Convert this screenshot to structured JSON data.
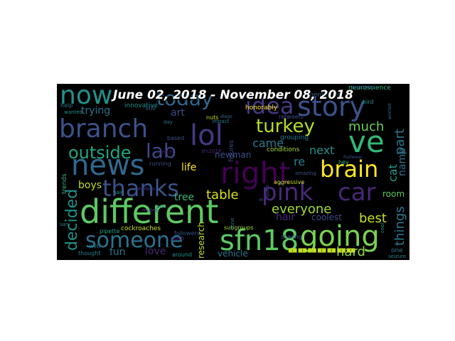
{
  "title": "June 02, 2018 - November 08, 2018",
  "words": [
    {
      "text": "different",
      "color": "#5ec962"
    },
    {
      "text": "lol",
      "color": "#443983"
    },
    {
      "text": "branch",
      "color": "#3b528b"
    },
    {
      "text": "now",
      "color": "#21918c"
    },
    {
      "text": "story",
      "color": "#3b528b"
    },
    {
      "text": "ve",
      "color": "#35b779"
    },
    {
      "text": "right",
      "color": "#440154"
    },
    {
      "text": "news",
      "color": "#31688e"
    },
    {
      "text": "going",
      "color": "#7ad151"
    },
    {
      "text": "sfn18",
      "color": "#5ec962"
    },
    {
      "text": "thanks",
      "color": "#3b528b"
    },
    {
      "text": "pink",
      "color": "#482878"
    },
    {
      "text": "car",
      "color": "#482878"
    },
    {
      "text": "brain",
      "color": "#fde725"
    },
    {
      "text": "someone",
      "color": "#2c728e"
    },
    {
      "text": "turkey",
      "color": "#b5de2b"
    },
    {
      "text": "lab",
      "color": "#3e4989"
    },
    {
      "text": "outside",
      "color": "#21a685"
    },
    {
      "text": "decided",
      "color": "#21918c"
    },
    {
      "text": "today",
      "color": "#31688e"
    },
    {
      "text": "idea",
      "color": "#443983"
    },
    {
      "text": "everyone",
      "color": "#a0da39"
    },
    {
      "text": "hard",
      "color": "#90d743"
    },
    {
      "text": "best",
      "color": "#c8e020"
    },
    {
      "text": "things",
      "color": "#2a788e"
    },
    {
      "text": "part",
      "color": "#2a788e"
    },
    {
      "text": "much",
      "color": "#6ccd5a"
    },
    {
      "text": "came",
      "color": "#2a788e"
    },
    {
      "text": "next",
      "color": "#21918c"
    },
    {
      "text": "table",
      "color": "#d8e219"
    },
    {
      "text": "boys",
      "color": "#bddf26"
    },
    {
      "text": "fun",
      "color": "#2a788e"
    },
    {
      "text": "love",
      "color": "#482878"
    },
    {
      "text": "trying",
      "color": "#2c728e"
    },
    {
      "text": "art",
      "color": "#3e4989"
    },
    {
      "text": "life",
      "color": "#fde725"
    },
    {
      "text": "tree",
      "color": "#35b779"
    },
    {
      "text": "newman",
      "color": "#3b528b"
    },
    {
      "text": "re",
      "color": "#26828e"
    },
    {
      "text": "cat",
      "color": "#1f9e89"
    },
    {
      "text": "name",
      "color": "#2c728e"
    },
    {
      "text": "room",
      "color": "#5ec962"
    },
    {
      "text": "hair",
      "color": "#482878"
    },
    {
      "text": "coolest",
      "color": "#3e4989"
    },
    {
      "text": "research",
      "color": "#c2df23"
    },
    {
      "text": "vehicle",
      "color": "#2a788e"
    },
    {
      "text": "cockroaches",
      "color": "#c8e020"
    },
    {
      "text": "conditions",
      "color": "#a0da39"
    },
    {
      "text": "mentioned",
      "color": "#31688e"
    },
    {
      "text": "honorably",
      "color": "#fde725"
    },
    {
      "text": "neuroscience",
      "color": "#35b779"
    },
    {
      "text": "innovative",
      "color": "#21918c"
    },
    {
      "text": "retweets",
      "color": "#3e4989"
    },
    {
      "text": "grouping",
      "color": "#2a788e"
    },
    {
      "text": "aggressive",
      "color": "#c2df23"
    },
    {
      "text": "subgroups",
      "color": "#a0da39"
    },
    {
      "text": "sharing",
      "color": "#3b528b"
    },
    {
      "text": "around",
      "color": "#21918c"
    },
    {
      "text": "well",
      "color": "#2a788e"
    },
    {
      "text": "thought",
      "color": "#26828e"
    },
    {
      "text": "followers",
      "color": "#3b528b"
    },
    {
      "text": "pipette",
      "color": "#1f9e89"
    },
    {
      "text": "trends",
      "color": "#35b779"
    },
    {
      "text": "still",
      "color": "#31688e"
    },
    {
      "text": "nuts",
      "color": "#c2df23"
    },
    {
      "text": "hey",
      "color": "#35b779"
    },
    {
      "text": "bird",
      "color": "#21918c"
    },
    {
      "text": "one",
      "color": "#2a788e"
    },
    {
      "text": "seizure",
      "color": "#26828e"
    },
    {
      "text": "tomorrow",
      "color": "#3b528b"
    },
    {
      "text": "help",
      "color": "#2a788e"
    },
    {
      "text": "wanted",
      "color": "#21918c"
    },
    {
      "text": "amazing",
      "color": "#3b528b"
    },
    {
      "text": "sfn2018",
      "color": "#482878"
    },
    {
      "text": "figures",
      "color": "#3e4989"
    },
    {
      "text": "done",
      "color": "#2c728e"
    },
    {
      "text": "gosh",
      "color": "#482878"
    },
    {
      "text": "said",
      "color": "#21918c"
    },
    {
      "text": "running",
      "color": "#3e4989"
    },
    {
      "text": "san",
      "color": "#26828e"
    },
    {
      "text": "leaders",
      "color": "#443983"
    },
    {
      "text": "based",
      "color": "#3b528b"
    },
    {
      "text": "day",
      "color": "#2a788e"
    },
    {
      "text": "nice",
      "color": "#482878"
    },
    {
      "text": "impact",
      "color": "#2a788e"
    },
    {
      "text": "ll",
      "color": "#31688e"
    },
    {
      "text": "quite",
      "color": "#3e4989"
    },
    {
      "text": "diego",
      "color": "#2c728e"
    },
    {
      "text": "footwear",
      "color": "#3b528b"
    },
    {
      "text": "worried",
      "color": "#2a788e"
    },
    {
      "text": "cool",
      "color": "#1f9e89"
    },
    {
      "text": "put",
      "color": "#31688e"
    },
    {
      "text": "mutes",
      "color": "#3e4989"
    },
    {
      "text": "🀰🀰🀰🀰🀰🀰🀰",
      "color": "#c2df23"
    }
  ]
}
